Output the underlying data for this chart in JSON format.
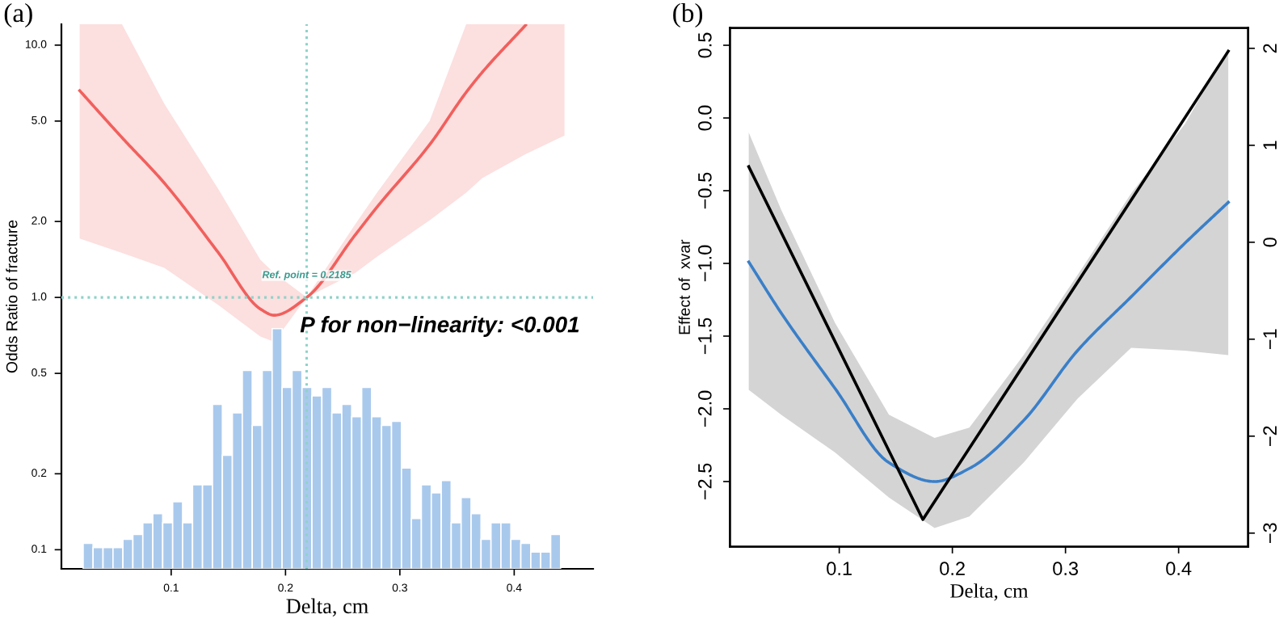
{
  "chart_data": [
    {
      "type": "line",
      "title": "(a)",
      "xlabel": "Delta, cm",
      "ylabel": "Odds Ratio of fracture",
      "log": "y",
      "grid": false,
      "xlim": [
        0.004,
        0.469
      ],
      "xticks": [
        0.1,
        0.2,
        0.3,
        0.4
      ],
      "ylim": [
        0.084,
        12.1
      ],
      "yticks": [
        0.1,
        0.2,
        0.5,
        {
          "value": 1,
          "label": "1.0"
        },
        {
          "value": 2,
          "label": "2.0"
        },
        {
          "value": 5,
          "label": "5.0"
        },
        {
          "value": 10,
          "label": "10.0"
        }
      ],
      "series": [
        {
          "type": "histogram",
          "color": "#a9c9ec",
          "bins": [
            0.023,
            0.0317,
            0.0404,
            0.0491,
            0.0578,
            0.0665,
            0.0752,
            0.0839,
            0.0926,
            0.1013,
            0.11,
            0.1187,
            0.1274,
            0.1361,
            0.1448,
            0.1535,
            0.1622,
            0.1709,
            0.1796,
            0.1883,
            0.197,
            0.2057,
            0.2144,
            0.2231,
            0.2318,
            0.2405,
            0.2492,
            0.2579,
            0.2666,
            0.2753,
            0.284,
            0.2927,
            0.3014,
            0.3101,
            0.3188,
            0.3275,
            0.3362,
            0.3449,
            0.3536,
            0.3623,
            0.371,
            0.3797,
            0.3884,
            0.3971,
            0.4058,
            0.4145,
            0.4232,
            0.4319,
            0.4406
          ],
          "values": [
            0.106,
            0.102,
            0.102,
            0.102,
            0.11,
            0.115,
            0.128,
            0.139,
            0.128,
            0.155,
            0.128,
            0.181,
            0.181,
            0.377,
            0.237,
            0.349,
            0.514,
            0.311,
            0.514,
            0.752,
            0.44,
            0.514,
            0.44,
            0.407,
            0.44,
            0.349,
            0.377,
            0.337,
            0.44,
            0.337,
            0.311,
            0.323,
            0.211,
            0.133,
            0.181,
            0.168,
            0.188,
            0.128,
            0.161,
            0.139,
            0.11,
            0.128,
            0.128,
            0.11,
            0.106,
            0.098,
            0.098,
            0.115
          ]
        },
        {
          "color": "#f0605d",
          "x": [
            0.02,
            0.057,
            0.094,
            0.141,
            0.178,
            0.19,
            0.2185,
            0.261,
            0.28,
            0.326,
            0.358,
            0.372,
            0.41,
            0.444
          ],
          "values": [
            6.6,
            4.3,
            2.84,
            1.51,
            0.9,
            0.85,
            1.0,
            1.77,
            2.28,
            4.03,
            6.5,
            7.8,
            12.0,
            null
          ],
          "lower": [
            1.71,
            1.5,
            1.31,
            0.934,
            0.7,
            0.667,
            1.0,
            1.25,
            1.45,
            2.02,
            2.6,
            2.97,
            3.7,
            4.38
          ],
          "upper": [
            12.1,
            12.1,
            5.85,
            2.7,
            1.41,
            1.25,
            1.0,
            1.95,
            2.6,
            5.0,
            12.1,
            12.1,
            12.1,
            12.1
          ]
        }
      ],
      "ref_lines": [
        {
          "axis": "x",
          "value": 0.2185,
          "label": "Ref. point = 0.2185",
          "color": "#8fd2c8",
          "line_style": "dotted"
        },
        {
          "axis": "y",
          "value": 1.0,
          "color": "#8fd2c8",
          "line_style": "dotted"
        }
      ],
      "annotations": [
        "P for non−linearity: <0.001"
      ]
    },
    {
      "type": "line",
      "title": "(b)",
      "xlabel": "Delta, cm",
      "ylabel": "Effect of  xvar",
      "grid": false,
      "xlim": [
        0.0034,
        0.4614
      ],
      "xticks": [
        0.1,
        0.2,
        0.3,
        0.4
      ],
      "ylim": [
        -2.948,
        0.619
      ],
      "yticks": [
        {
          "value": -2.5,
          "label": "−2.5"
        },
        {
          "value": -2.0,
          "label": "−2.0"
        },
        {
          "value": -1.5,
          "label": "−1.5"
        },
        {
          "value": -1.0,
          "label": "−1.0"
        },
        {
          "value": -0.5,
          "label": "−0.5"
        },
        {
          "value": 0,
          "label": "0.0"
        },
        0.5
      ],
      "y2lim": [
        -3.14,
        2.21
      ],
      "y2ticks": [
        {
          "value": -3,
          "label": "−3"
        },
        {
          "value": -2,
          "label": "−2"
        },
        {
          "value": -1,
          "label": "−1"
        },
        0,
        1,
        2
      ],
      "series": [
        {
          "color": "#3a7fc8",
          "x": [
            0.02,
            0.0486,
            0.0963,
            0.1439,
            0.1843,
            0.215,
            0.263,
            0.3106,
            0.358,
            0.4057,
            0.4439
          ],
          "values": [
            -0.99,
            -1.34,
            -1.86,
            -2.37,
            -2.5,
            -2.41,
            -2.08,
            -1.6,
            -1.23,
            -0.86,
            -0.58
          ],
          "lower": [
            -1.87,
            -2.04,
            -2.3,
            -2.61,
            -2.82,
            -2.74,
            -2.37,
            -1.93,
            -1.58,
            -1.6,
            -1.63
          ],
          "upper": [
            -0.1,
            -0.63,
            -1.41,
            -2.04,
            -2.2,
            -2.13,
            -1.63,
            -1.08,
            -0.52,
            -0.04,
            0.48
          ]
        },
        {
          "axis": "y2",
          "color": "#000000",
          "x": [
            0.02,
            0.1739,
            0.4439
          ],
          "values": [
            0.78,
            -2.86,
            1.97
          ]
        }
      ]
    }
  ]
}
